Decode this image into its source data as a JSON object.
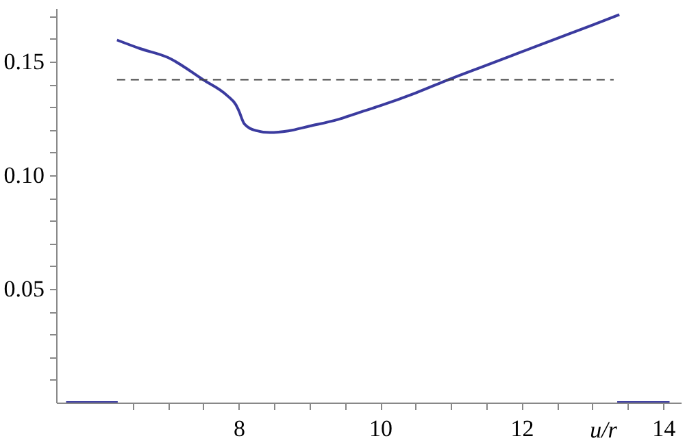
{
  "chart_data": {
    "type": "line",
    "xlabel": "u/r",
    "series": [
      {
        "color": "#3b3b9f",
        "x": [
          6.28,
          6.6,
          7.0,
          7.5,
          7.84,
          7.96,
          8.0,
          8.08,
          8.24,
          8.44,
          8.7,
          9.0,
          9.4,
          9.71,
          10.0,
          10.5,
          10.96,
          11.5,
          12.0,
          12.5,
          13.0,
          13.38
        ],
        "values": [
          0.1595,
          0.1558,
          0.1518,
          0.142,
          0.135,
          0.131,
          0.1285,
          0.1226,
          0.1197,
          0.1188,
          0.1195,
          0.1216,
          0.1245,
          0.1277,
          0.1306,
          0.1362,
          0.142,
          0.1484,
          0.1543,
          0.1602,
          0.1661,
          0.1707
        ]
      },
      {
        "color": "#3b3b9f",
        "x": [
          5.56,
          6.29
        ],
        "values": [
          0,
          0
        ]
      },
      {
        "color": "#3b3b9f",
        "x": [
          13.35,
          14.09
        ],
        "values": [
          0,
          0
        ]
      }
    ],
    "xlim": [
      5.42,
      14.25
    ],
    "ylim": [
      0,
      0.1735
    ],
    "xticks": [
      {
        "value": 6.5,
        "label": null
      },
      {
        "value": 7,
        "label": null
      },
      {
        "value": 7.5,
        "label": null
      },
      8,
      {
        "value": 8.5,
        "label": null
      },
      {
        "value": 9,
        "label": null
      },
      {
        "value": 9.5,
        "label": null
      },
      10,
      {
        "value": 10.5,
        "label": null
      },
      {
        "value": 11,
        "label": null
      },
      {
        "value": 11.5,
        "label": null
      },
      12,
      {
        "value": 12.5,
        "label": null
      },
      {
        "value": 13,
        "label": null
      },
      {
        "value": 13.5,
        "label": null
      },
      14
    ],
    "yticks": [
      {
        "value": 0.01,
        "label": null
      },
      {
        "value": 0.02,
        "label": null
      },
      {
        "value": 0.03,
        "label": null
      },
      {
        "value": 0.04,
        "label": null
      },
      {
        "value": 0.05,
        "label": "0.05"
      },
      {
        "value": 0.06,
        "label": null
      },
      {
        "value": 0.07,
        "label": null
      },
      {
        "value": 0.08,
        "label": null
      },
      {
        "value": 0.09,
        "label": null
      },
      {
        "value": 0.1,
        "label": "0.10"
      },
      {
        "value": 0.11,
        "label": null
      },
      {
        "value": 0.12,
        "label": null
      },
      {
        "value": 0.13,
        "label": null
      },
      {
        "value": 0.14,
        "label": null
      },
      {
        "value": 0.15,
        "label": "0.15"
      },
      {
        "value": 0.16,
        "label": null
      },
      {
        "value": 0.17,
        "label": null
      }
    ],
    "ref_lines": [
      {
        "axis": "y",
        "value": 0.142,
        "color": "#444444",
        "line_style": "dashed"
      }
    ],
    "grid": false,
    "line_style": "solid"
  }
}
